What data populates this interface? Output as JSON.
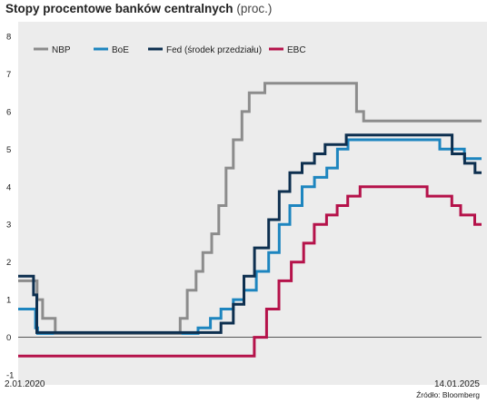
{
  "chart_data": {
    "type": "line",
    "title": "Stopy procentowe banków centralnych",
    "unit": "(proc.)",
    "xlabel": "",
    "ylabel": "",
    "x_range": [
      "2020-01-02",
      "2025-01-14"
    ],
    "x_tick_labels": [
      "2.01.2020",
      "14.01.2025"
    ],
    "ylim": [
      -1,
      8
    ],
    "y_ticks": [
      -1,
      0,
      1,
      2,
      3,
      4,
      5,
      6,
      7,
      8
    ],
    "grid": false,
    "legend_position": "top-left",
    "source": "Źródło: Bloomberg",
    "series": [
      {
        "name": "NBP",
        "color": "#8c8c8c",
        "points": [
          [
            "2020-01-02",
            1.5
          ],
          [
            "2020-03-17",
            1.0
          ],
          [
            "2020-04-08",
            0.5
          ],
          [
            "2020-05-28",
            0.1
          ],
          [
            "2021-10-06",
            0.5
          ],
          [
            "2021-11-03",
            1.25
          ],
          [
            "2021-12-08",
            1.75
          ],
          [
            "2022-01-04",
            2.25
          ],
          [
            "2022-02-08",
            2.75
          ],
          [
            "2022-03-08",
            3.5
          ],
          [
            "2022-04-06",
            4.5
          ],
          [
            "2022-05-05",
            5.25
          ],
          [
            "2022-06-08",
            6.0
          ],
          [
            "2022-07-07",
            6.5
          ],
          [
            "2022-09-07",
            6.75
          ],
          [
            "2023-09-06",
            6.0
          ],
          [
            "2023-10-04",
            5.75
          ],
          [
            "2025-01-14",
            5.75
          ]
        ]
      },
      {
        "name": "BoE",
        "color": "#1d85bf",
        "points": [
          [
            "2020-01-02",
            0.75
          ],
          [
            "2020-03-11",
            0.25
          ],
          [
            "2020-03-19",
            0.1
          ],
          [
            "2021-12-16",
            0.25
          ],
          [
            "2022-02-03",
            0.5
          ],
          [
            "2022-03-17",
            0.75
          ],
          [
            "2022-05-05",
            1.0
          ],
          [
            "2022-06-16",
            1.25
          ],
          [
            "2022-08-04",
            1.75
          ],
          [
            "2022-09-22",
            2.25
          ],
          [
            "2022-11-03",
            3.0
          ],
          [
            "2022-12-15",
            3.5
          ],
          [
            "2023-02-02",
            4.0
          ],
          [
            "2023-03-23",
            4.25
          ],
          [
            "2023-05-11",
            4.5
          ],
          [
            "2023-06-22",
            5.0
          ],
          [
            "2023-08-03",
            5.25
          ],
          [
            "2024-08-01",
            5.0
          ],
          [
            "2024-11-07",
            4.75
          ],
          [
            "2025-01-14",
            4.75
          ]
        ]
      },
      {
        "name": "Fed (środek przedziału)",
        "color": "#0d2f4f",
        "points": [
          [
            "2020-01-02",
            1.625
          ],
          [
            "2020-03-03",
            1.125
          ],
          [
            "2020-03-16",
            0.125
          ],
          [
            "2022-03-17",
            0.375
          ],
          [
            "2022-05-05",
            0.875
          ],
          [
            "2022-06-16",
            1.625
          ],
          [
            "2022-07-28",
            2.375
          ],
          [
            "2022-09-22",
            3.125
          ],
          [
            "2022-11-03",
            3.875
          ],
          [
            "2022-12-15",
            4.375
          ],
          [
            "2023-02-02",
            4.625
          ],
          [
            "2023-03-23",
            4.875
          ],
          [
            "2023-05-04",
            5.125
          ],
          [
            "2023-07-27",
            5.375
          ],
          [
            "2024-09-19",
            4.875
          ],
          [
            "2024-11-08",
            4.625
          ],
          [
            "2024-12-19",
            4.375
          ],
          [
            "2025-01-14",
            4.375
          ]
        ]
      },
      {
        "name": "EBC",
        "color": "#b5124a",
        "points": [
          [
            "2020-01-02",
            -0.5
          ],
          [
            "2022-07-27",
            0.0
          ],
          [
            "2022-09-14",
            0.75
          ],
          [
            "2022-11-02",
            1.5
          ],
          [
            "2022-12-21",
            2.0
          ],
          [
            "2023-02-08",
            2.5
          ],
          [
            "2023-03-22",
            3.0
          ],
          [
            "2023-05-10",
            3.25
          ],
          [
            "2023-06-21",
            3.5
          ],
          [
            "2023-08-02",
            3.75
          ],
          [
            "2023-09-20",
            4.0
          ],
          [
            "2024-06-12",
            3.75
          ],
          [
            "2024-09-18",
            3.5
          ],
          [
            "2024-10-23",
            3.25
          ],
          [
            "2024-12-18",
            3.0
          ],
          [
            "2025-01-14",
            3.0
          ]
        ]
      }
    ]
  }
}
